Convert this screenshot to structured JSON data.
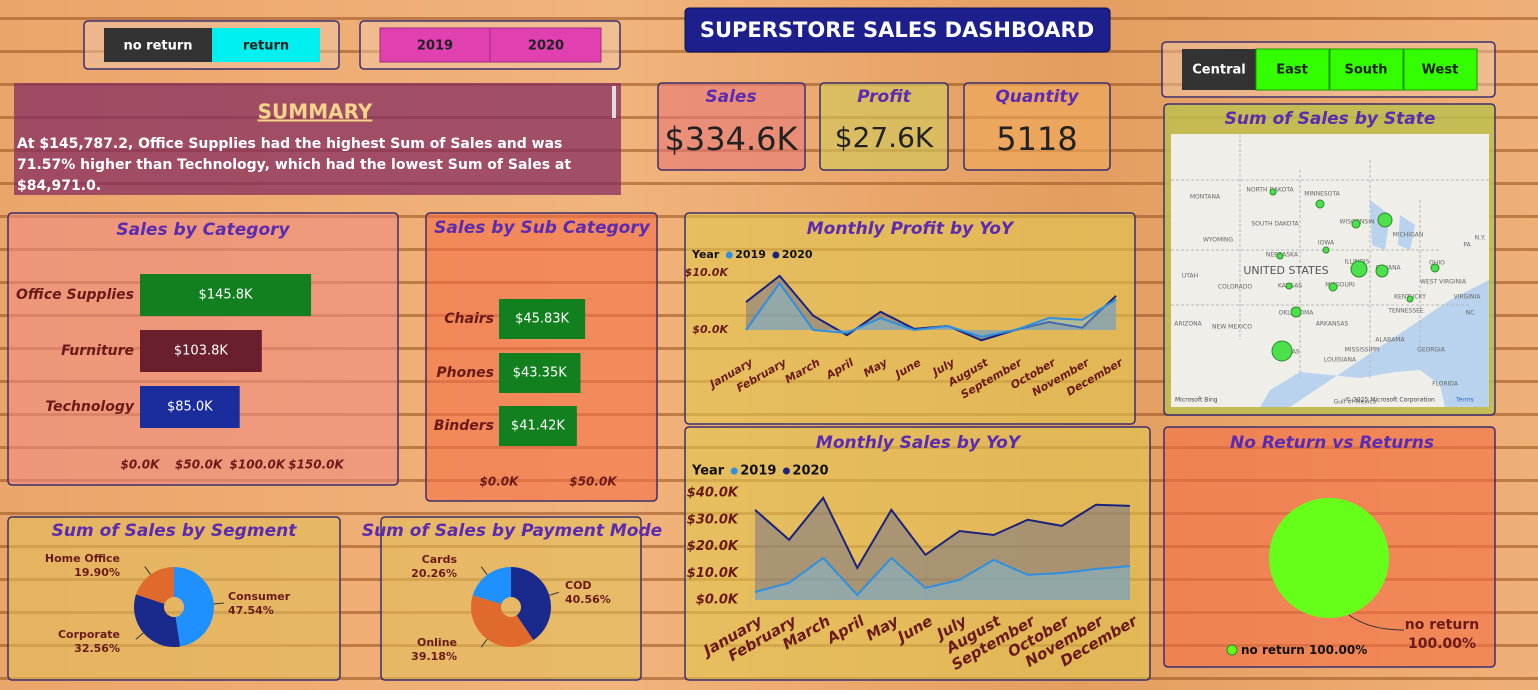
{
  "header": {
    "title": "SUPERSTORE SALES DASHBOARD"
  },
  "slicers": {
    "returns": [
      "no return",
      "return"
    ],
    "years": [
      "2019",
      "2020"
    ],
    "regions": [
      "Central",
      "East",
      "South",
      "West"
    ]
  },
  "kpis": [
    {
      "label": "Sales",
      "value": "$334.6K"
    },
    {
      "label": "Profit",
      "value": "$27.6K"
    },
    {
      "label": "Quantity",
      "value": 5118
    }
  ],
  "summary": {
    "title": "SUMMARY",
    "text": "At $145,787.2, Office Supplies had the highest Sum of Sales and was 71.57% higher than Technology, which had the lowest Sum of Sales at $84,971.0."
  },
  "map": {
    "title": "Sum of Sales by State",
    "labels": [
      "MONTANA",
      "NORTH DAKOTA",
      "MINNESOTA",
      "SOUTH DAKOTA",
      "WISCONSIN",
      "MICHIGAN",
      "WYOMING",
      "NEBRASKA",
      "IOWA",
      "UNITED STATES",
      "ILLINOIS",
      "INDIANA",
      "OHIO",
      "PA",
      "N.Y.",
      "UTAH",
      "COLORADO",
      "KANSAS",
      "MISSOURI",
      "KENTUCKY",
      "WEST VIRGINIA",
      "VIRGINIA",
      "ARIZONA",
      "NEW MEXICO",
      "OKLAHOMA",
      "ARKANSAS",
      "TENNESSEE",
      "NC",
      "TEXAS",
      "MISSISSIPPI",
      "ALABAMA",
      "GEORGIA",
      "LOUISIANA",
      "FLORIDA",
      "Gulf of Mexico"
    ],
    "credits": [
      "Microsoft Bing",
      "© 2025 Microsoft Corporation",
      "Terms"
    ]
  },
  "chart_data": [
    {
      "type": "hbar",
      "title": "Sales by Category",
      "categories": [
        "Office Supplies",
        "Furniture",
        "Technology"
      ],
      "values": [
        145787.2,
        103800,
        84971.0
      ],
      "value_labels": [
        "$145.8K",
        "$103.8K",
        "$85.0K"
      ],
      "colors": [
        "#12801f",
        "#6a1f2c",
        "#1b2c9c"
      ],
      "xlim": [
        0,
        150000
      ],
      "xticks": [
        {
          "value": 0,
          "label": "$0.0K"
        },
        {
          "value": 50000,
          "label": "$50.0K"
        },
        {
          "value": 100000,
          "label": "$100.0K"
        },
        {
          "value": 150000,
          "label": "$150.0K"
        }
      ]
    },
    {
      "type": "hbar",
      "title": "Sales by Sub Category",
      "categories": [
        "Chairs",
        "Phones",
        "Binders"
      ],
      "values": [
        45830,
        43350,
        41420
      ],
      "value_labels": [
        "$45.83K",
        "$43.35K",
        "$41.42K"
      ],
      "colors": [
        "#12801f",
        "#12801f",
        "#12801f"
      ],
      "xlim": [
        0,
        50000
      ],
      "xticks": [
        {
          "value": 0,
          "label": "$0.0K"
        },
        {
          "value": 50000,
          "label": "$50.0K"
        }
      ]
    },
    {
      "type": "line",
      "title": "Monthly Profit by YoY",
      "legend_title": "Year",
      "categories": [
        "January",
        "February",
        "March",
        "April",
        "May",
        "June",
        "July",
        "August",
        "September",
        "October",
        "November",
        "December"
      ],
      "series": [
        {
          "name": "2019",
          "color": "#2f8fe0",
          "values": [
            0,
            8200,
            0,
            -500,
            2100,
            0,
            700,
            -1200,
            0,
            2100,
            1800,
            5300
          ]
        },
        {
          "name": "2020",
          "color": "#1a237e",
          "values": [
            4900,
            9500,
            2500,
            -900,
            3200,
            200,
            700,
            -1800,
            0,
            1400,
            400,
            6000
          ]
        }
      ],
      "ylim": [
        -3000,
        11000
      ],
      "yticks": [
        {
          "value": 0,
          "label": "$0.0K"
        },
        {
          "value": 10000,
          "label": "$10.0K"
        }
      ]
    },
    {
      "type": "line",
      "title": "Monthly Sales by YoY",
      "legend_title": "Year",
      "categories": [
        "January",
        "February",
        "March",
        "April",
        "May",
        "June",
        "July",
        "August",
        "September",
        "October",
        "November",
        "December"
      ],
      "series": [
        {
          "name": "2019",
          "color": "#2f8fe0",
          "values": [
            3000,
            6400,
            15700,
            1900,
            15700,
            4500,
            7500,
            15000,
            9400,
            10100,
            11600,
            12700
          ]
        },
        {
          "name": "2020",
          "color": "#1a237e",
          "values": [
            33700,
            22500,
            38200,
            12000,
            33700,
            16900,
            25800,
            24300,
            30000,
            27700,
            35600,
            35200
          ]
        }
      ],
      "ylim": [
        0,
        40000
      ],
      "yticks": [
        {
          "value": 0,
          "label": "$0.0K"
        },
        {
          "value": 10000,
          "label": "$10.0K"
        },
        {
          "value": 20000,
          "label": "$20.0K"
        },
        {
          "value": 30000,
          "label": "$30.0K"
        },
        {
          "value": 40000,
          "label": "$40.0K"
        }
      ]
    },
    {
      "type": "pie",
      "title": "Sum of Sales by Segment",
      "categories": [
        "Consumer",
        "Corporate",
        "Home Office"
      ],
      "values": [
        47.54,
        32.56,
        19.9
      ],
      "value_labels": [
        "47.54%",
        "32.56%",
        "19.90%"
      ],
      "colors": [
        "#1e90ff",
        "#1a2a8c",
        "#e06a2c"
      ]
    },
    {
      "type": "pie",
      "title": "Sum of Sales by Payment Mode",
      "categories": [
        "COD",
        "Online",
        "Cards"
      ],
      "values": [
        40.56,
        39.18,
        20.26
      ],
      "value_labels": [
        "40.56%",
        "39.18%",
        "20.26%"
      ],
      "colors": [
        "#1a2a8c",
        "#e06a2c",
        "#1e90ff"
      ]
    },
    {
      "type": "pie",
      "title": "No Return vs Returns",
      "categories": [
        "no return"
      ],
      "values": [
        100
      ],
      "value_labels": [
        "100.00%"
      ],
      "colors": [
        "#66ff1a"
      ]
    }
  ]
}
